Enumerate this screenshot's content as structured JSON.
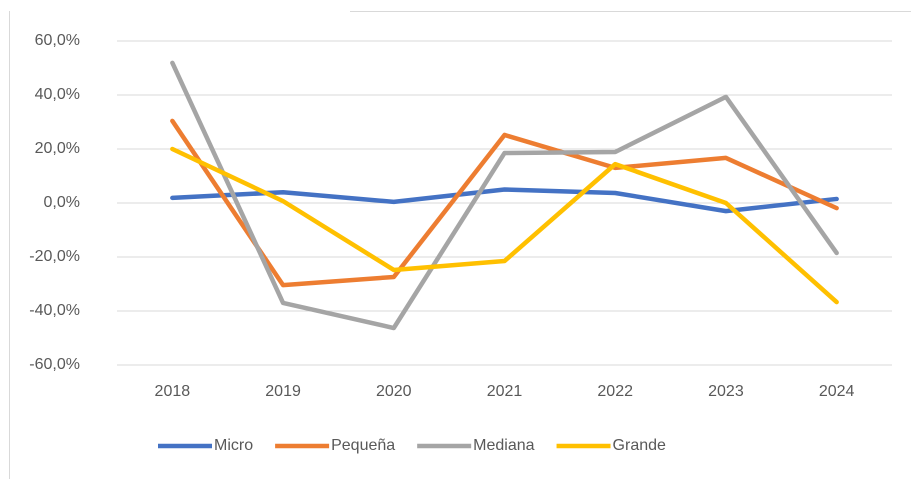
{
  "chart_data": {
    "type": "line",
    "categories": [
      "2018",
      "2019",
      "2020",
      "2021",
      "2022",
      "2023",
      "2024"
    ],
    "series": [
      {
        "name": "Micro",
        "color": "#4472c4",
        "values": [
          1.9,
          4,
          0.4,
          5,
          3.7,
          -3,
          1.5
        ]
      },
      {
        "name": "Pequeña",
        "color": "#ed7d31",
        "values": [
          30.4,
          -30.4,
          -27.4,
          25.2,
          13,
          16.7,
          -1.9
        ]
      },
      {
        "name": "Mediana",
        "color": "#a5a5a5",
        "values": [
          51.9,
          -37,
          -46.3,
          18.5,
          18.9,
          39.3,
          -18.5
        ]
      },
      {
        "name": "Grande",
        "color": "#ffc000",
        "values": [
          20,
          0.7,
          -24.8,
          -21.5,
          14.4,
          0,
          -36.7
        ]
      }
    ],
    "ylim": [
      -60,
      60
    ],
    "yticks": [
      {
        "value": -60,
        "label": "-60,0%"
      },
      {
        "value": -40,
        "label": "-40,0%"
      },
      {
        "value": -20,
        "label": "-20,0%"
      },
      {
        "value": 0,
        "label": "0,0%"
      },
      {
        "value": 20,
        "label": "20,0%"
      },
      {
        "value": 40,
        "label": "40,0%"
      },
      {
        "value": 60,
        "label": "60,0%"
      }
    ],
    "grid": true,
    "legend": "bottom"
  }
}
